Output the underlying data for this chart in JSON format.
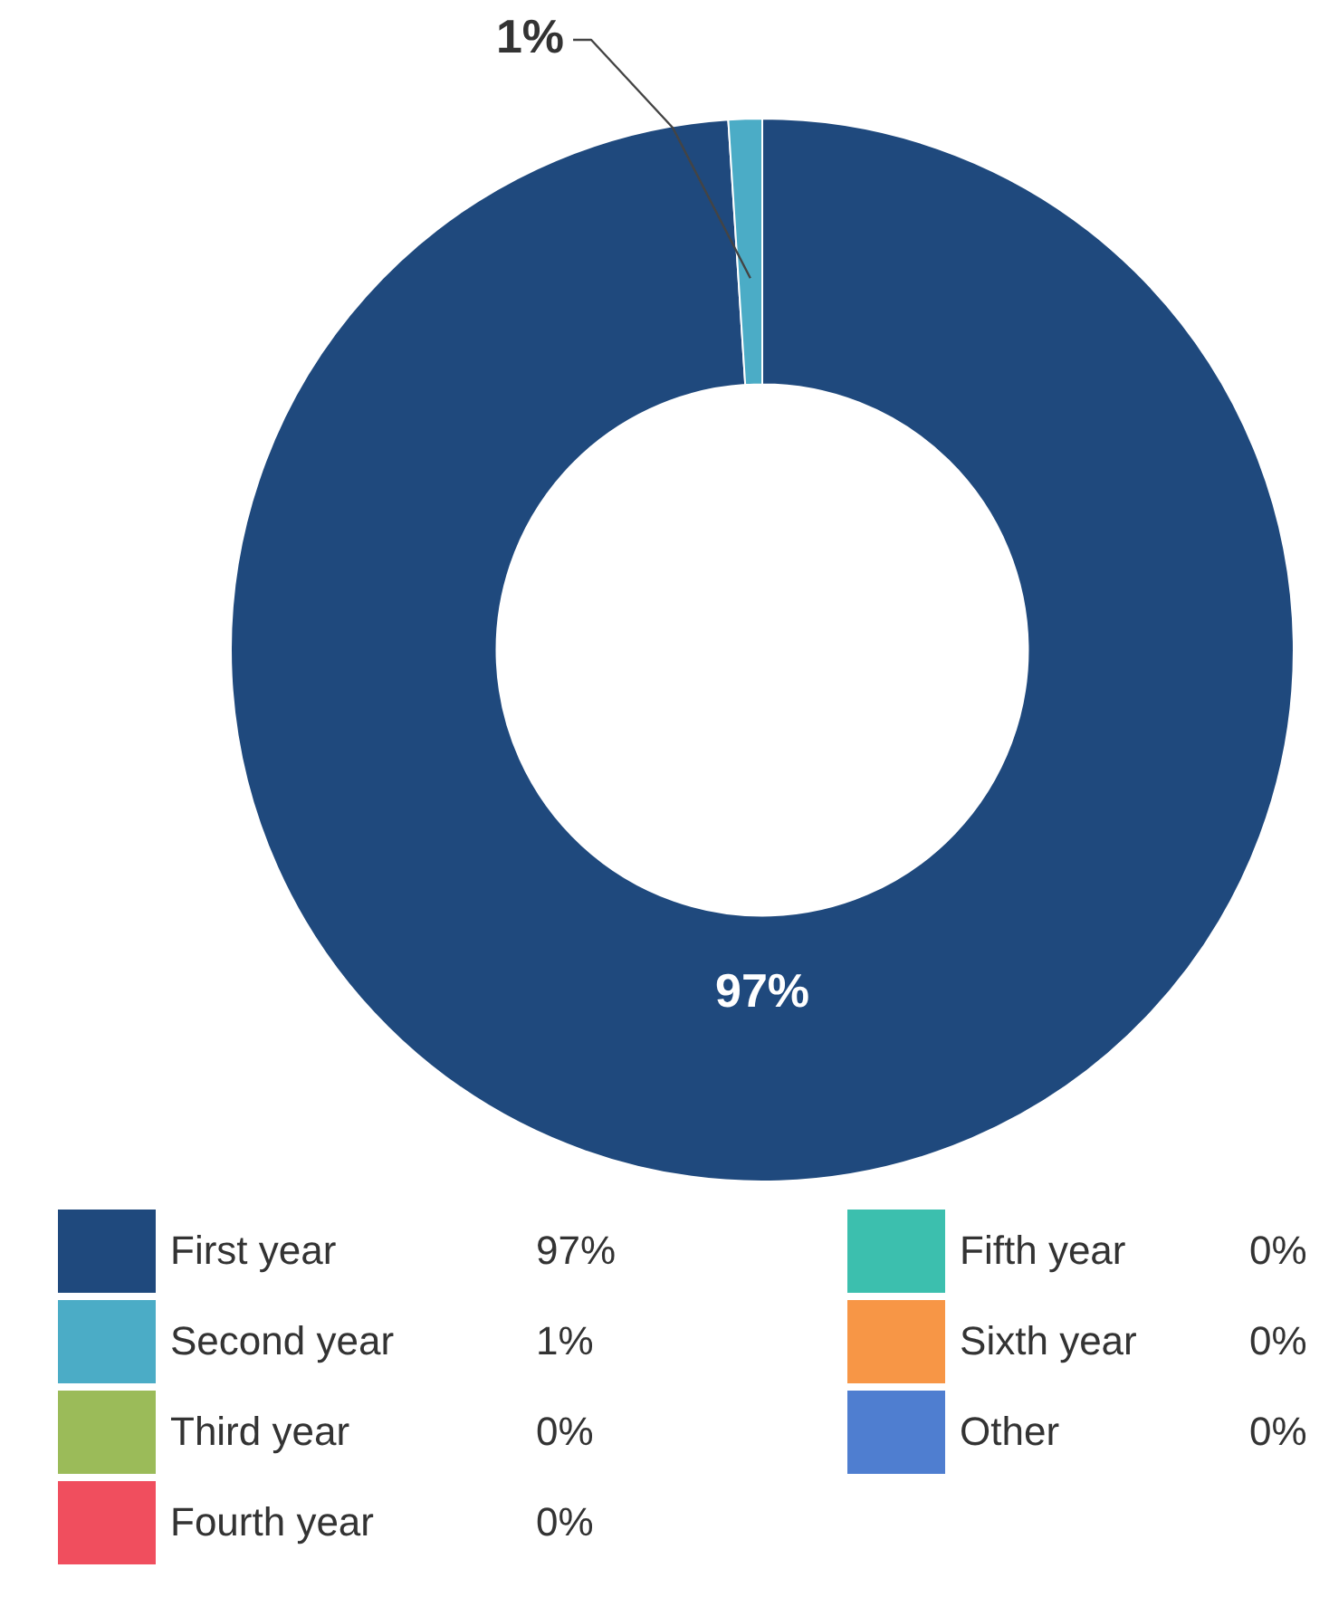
{
  "chart_data": {
    "type": "donut",
    "categories": [
      "First year",
      "Second year",
      "Third year",
      "Fourth year",
      "Fifth year",
      "Sixth year",
      "Other"
    ],
    "values": [
      97,
      1,
      0,
      0,
      0,
      0,
      0
    ],
    "value_labels": [
      "97%",
      "1%",
      "0%",
      "0%",
      "0%",
      "0%",
      "0%"
    ],
    "colors": [
      "#1f497d",
      "#4bacc6",
      "#9bbb59",
      "#f04e5e",
      "#3cbfae",
      "#f79646",
      "#4f7ed0"
    ],
    "legend": "bottom"
  }
}
